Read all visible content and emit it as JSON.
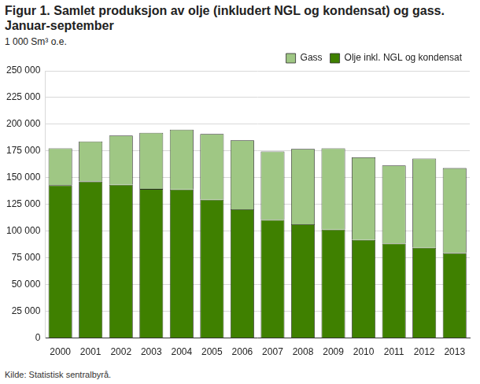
{
  "chart_data": {
    "type": "bar",
    "title": "Figur 1. Samlet produksjon av olje (inkludert NGL og kondensat) og gass. Januar-september",
    "y_label": "1 000 Sm³ o.e.",
    "source": "Kilde: Statistisk sentralbyrå.",
    "categories": [
      "2000",
      "2001",
      "2002",
      "2003",
      "2004",
      "2005",
      "2006",
      "2007",
      "2008",
      "2009",
      "2010",
      "2011",
      "2012",
      "2013"
    ],
    "series": [
      {
        "name": "Olje inkl. NGL og kondensat",
        "color": "#3f8000",
        "values": [
          143000,
          146500,
          143500,
          139500,
          139000,
          129500,
          120500,
          110500,
          106500,
          101500,
          92000,
          88500,
          84500,
          79500
        ]
      },
      {
        "name": "Gass",
        "color": "#9fc784",
        "values": [
          34500,
          37500,
          46000,
          52500,
          56000,
          61500,
          64500,
          64000,
          70500,
          76000,
          77000,
          73000,
          83500,
          79500
        ]
      }
    ],
    "stacked": true,
    "ylim": [
      0,
      250000
    ],
    "yticks": [
      0,
      {
        "value": 25000,
        "label": "25 000"
      },
      {
        "value": 50000,
        "label": "50 000"
      },
      {
        "value": 75000,
        "label": "75 000"
      },
      {
        "value": 100000,
        "label": "100 000"
      },
      {
        "value": 125000,
        "label": "125 000"
      },
      {
        "value": 150000,
        "label": "150 000"
      },
      {
        "value": 175000,
        "label": "175 000"
      },
      {
        "value": 200000,
        "label": "200 000"
      },
      {
        "value": 225000,
        "label": "225 000"
      },
      {
        "value": 250000,
        "label": "250 000"
      }
    ],
    "grid": true,
    "legend": "top-right"
  }
}
